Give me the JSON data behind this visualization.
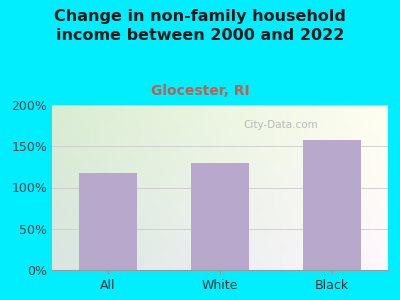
{
  "title": "Change in non-family household\nincome between 2000 and 2022",
  "subtitle": "Glocester, RI",
  "categories": [
    "All",
    "White",
    "Black"
  ],
  "values": [
    117,
    130,
    158
  ],
  "bar_color": "#b8a8cc",
  "title_color": "#1a1a1a",
  "subtitle_color": "#c0604a",
  "background_outer": "#00eeff",
  "ylim": [
    0,
    200
  ],
  "yticks": [
    0,
    50,
    100,
    150,
    200
  ],
  "ytick_labels": [
    "0%",
    "50%",
    "100%",
    "150%",
    "200%"
  ],
  "watermark": "City-Data.com",
  "title_fontsize": 11.5,
  "subtitle_fontsize": 10,
  "tick_fontsize": 9
}
